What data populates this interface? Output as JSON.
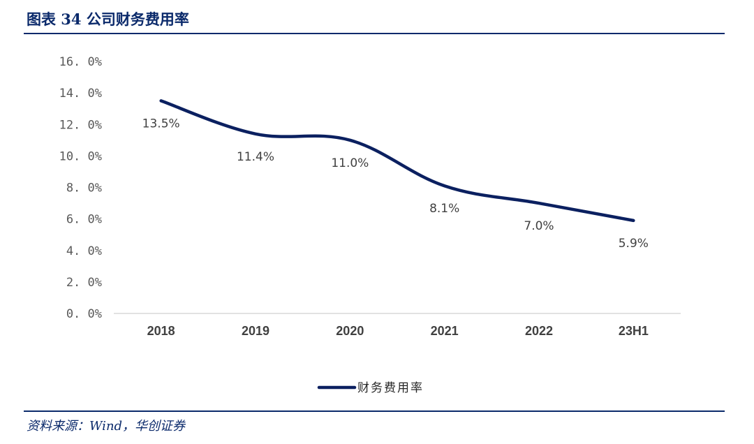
{
  "header": {
    "title": "图表 34  公司财务费用率"
  },
  "footer": {
    "source": "资料来源：Wind，华创证券"
  },
  "colors": {
    "line": "#0b2060",
    "accent": "#0b2a6b",
    "axis": "#d9d9d9"
  },
  "chart_data": {
    "type": "line",
    "categories": [
      "2018",
      "2019",
      "2020",
      "2021",
      "2022",
      "23H1"
    ],
    "series": [
      {
        "name": "财务费用率",
        "values": [
          13.5,
          11.4,
          11.0,
          8.1,
          7.0,
          5.9
        ]
      }
    ],
    "data_labels": [
      "13.5%",
      "11.4%",
      "11.0%",
      "8.1%",
      "7.0%",
      "5.9%"
    ],
    "yticks": [
      "0. 0%",
      "2. 0%",
      "4. 0%",
      "6. 0%",
      "8. 0%",
      "10. 0%",
      "12. 0%",
      "14. 0%",
      "16. 0%"
    ],
    "ylim": [
      0,
      16
    ],
    "grid": false,
    "smooth": true,
    "legend": "bottom-center"
  }
}
